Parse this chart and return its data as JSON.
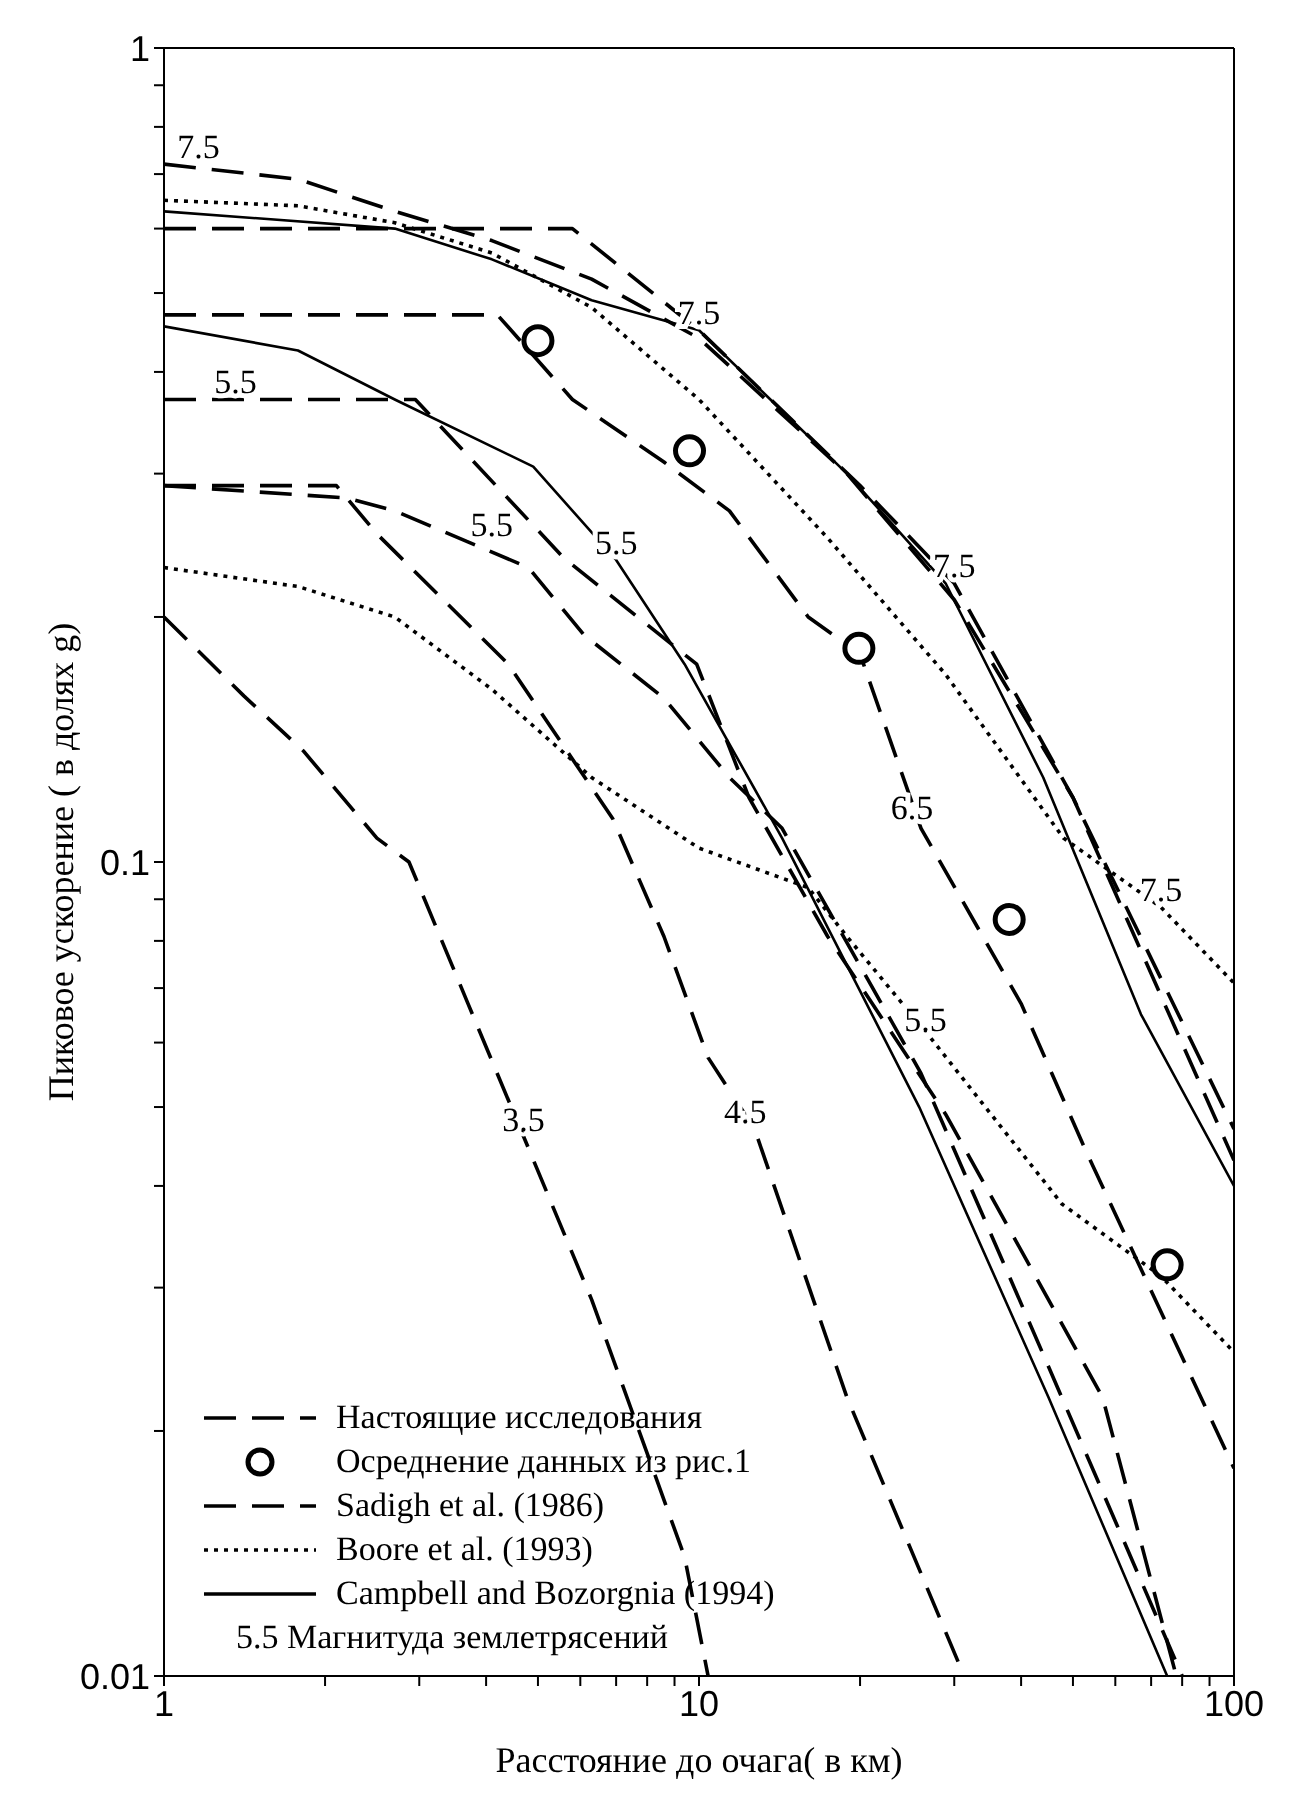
{
  "chart_data": {
    "type": "line",
    "xlabel": "Расстояние до очага( в км)",
    "ylabel": "Пиковое ускорение ( в долях g)",
    "log": "xy",
    "grid": false,
    "legend": "bottom left",
    "xlim": [
      1,
      100
    ],
    "xticks": [
      1,
      {
        "value": 2,
        "label": null
      },
      {
        "value": 3,
        "label": null
      },
      {
        "value": 4,
        "label": null
      },
      {
        "value": 5,
        "label": null
      },
      {
        "value": 6,
        "label": null
      },
      {
        "value": 7,
        "label": null
      },
      {
        "value": 8,
        "label": null
      },
      {
        "value": 9,
        "label": null
      },
      10,
      {
        "value": 20,
        "label": null
      },
      {
        "value": 30,
        "label": null
      },
      {
        "value": 40,
        "label": null
      },
      {
        "value": 50,
        "label": null
      },
      {
        "value": 60,
        "label": null
      },
      {
        "value": 70,
        "label": null
      },
      {
        "value": 80,
        "label": null
      },
      {
        "value": 90,
        "label": null
      },
      100
    ],
    "ylim": [
      0.01,
      1
    ],
    "yticks": [
      0.01,
      {
        "value": 0.02,
        "label": null
      },
      {
        "value": 0.03,
        "label": null
      },
      {
        "value": 0.04,
        "label": null
      },
      {
        "value": 0.05,
        "label": null
      },
      {
        "value": 0.06,
        "label": null
      },
      {
        "value": 0.07,
        "label": null
      },
      {
        "value": 0.08,
        "label": null
      },
      {
        "value": 0.09,
        "label": null
      },
      0.1,
      {
        "value": 0.2,
        "label": null
      },
      {
        "value": 0.3,
        "label": null
      },
      {
        "value": 0.4,
        "label": null
      },
      {
        "value": 0.5,
        "label": null
      },
      {
        "value": 0.6,
        "label": null
      },
      {
        "value": 0.7,
        "label": null
      },
      {
        "value": 0.8,
        "label": null
      },
      {
        "value": 0.9,
        "label": null
      },
      1
    ],
    "series": [
      {
        "name": "Настоящие исследования",
        "color": "#000000",
        "line_style": "dashed",
        "marker": "none",
        "x": [
          1,
          5.8,
          10,
          20,
          30,
          50,
          100
        ],
        "values": [
          0.6,
          0.6,
          0.45,
          0.29,
          0.22,
          0.12,
          0.047
        ]
      },
      {
        "color": "#000000",
        "line_style": "dashed",
        "marker": "none",
        "x": [
          1,
          4.2,
          5.8,
          8.6,
          11.4,
          16,
          20,
          26,
          40,
          53,
          100
        ],
        "values": [
          0.47,
          0.47,
          0.37,
          0.31,
          0.27,
          0.2,
          0.18,
          0.11,
          0.067,
          0.044,
          0.018
        ]
      },
      {
        "color": "#000000",
        "line_style": "dashed",
        "marker": "none",
        "x": [
          1,
          2.95,
          5.6,
          9.9,
          12.4,
          17.4,
          28.9,
          56.8,
          78
        ],
        "values": [
          0.37,
          0.37,
          0.236,
          0.175,
          0.12,
          0.081,
          0.049,
          0.022,
          0.01
        ]
      },
      {
        "color": "#000000",
        "line_style": "dashed",
        "marker": "none",
        "x": [
          1,
          2.1,
          2.5,
          4.4,
          6.9,
          8.6,
          10.4,
          12.7,
          18.9,
          31.3
        ],
        "values": [
          0.29,
          0.29,
          0.253,
          0.175,
          0.113,
          0.081,
          0.0575,
          0.047,
          0.022,
          0.01
        ]
      },
      {
        "color": "#000000",
        "line_style": "dashed",
        "marker": "none",
        "x": [
          1,
          1.41,
          1.82,
          2.5,
          2.87,
          3.7,
          4.7,
          6.3,
          9.4,
          10.4
        ],
        "values": [
          0.2,
          0.16,
          0.137,
          0.107,
          0.1,
          0.067,
          0.046,
          0.029,
          0.014,
          0.01
        ]
      },
      {
        "name": "Осреднение данных из рис.1",
        "type": "scatter",
        "color": "#000000",
        "marker": "circle",
        "x": [
          5,
          9.6,
          19.9,
          38,
          75
        ],
        "values": [
          0.437,
          0.32,
          0.183,
          0.085,
          0.032
        ]
      },
      {
        "name": "Sadigh et al. (1986)",
        "color": "#000000",
        "line_style": "dashed",
        "marker": "none",
        "x": [
          1,
          1.78,
          2.7,
          4.1,
          6.3,
          10,
          18.9,
          30,
          50,
          100
        ],
        "values": [
          0.72,
          0.69,
          0.63,
          0.58,
          0.52,
          0.44,
          0.3,
          0.21,
          0.12,
          0.043
        ]
      },
      {
        "color": "#000000",
        "line_style": "dashed",
        "marker": "none",
        "x": [
          1,
          2.2,
          2.7,
          4.8,
          6.1,
          8.6,
          11.4,
          14.3,
          26,
          45,
          80
        ],
        "values": [
          0.29,
          0.28,
          0.27,
          0.23,
          0.19,
          0.159,
          0.127,
          0.11,
          0.055,
          0.024,
          0.01
        ]
      },
      {
        "name": "Boore et al. (1993)",
        "color": "#000000",
        "line_style": "dotted",
        "marker": "none",
        "x": [
          1,
          1.78,
          2.7,
          4.1,
          6.3,
          10,
          17.4,
          28.9,
          48,
          73,
          100
        ],
        "values": [
          0.65,
          0.64,
          0.61,
          0.56,
          0.48,
          0.37,
          0.25,
          0.17,
          0.107,
          0.088,
          0.071
        ]
      },
      {
        "color": "#000000",
        "line_style": "dotted",
        "marker": "none",
        "x": [
          1,
          1.78,
          2.7,
          4.1,
          6.3,
          10,
          16,
          18.9,
          27,
          47.7,
          73,
          100
        ],
        "values": [
          0.23,
          0.218,
          0.2,
          0.163,
          0.127,
          0.104,
          0.093,
          0.081,
          0.061,
          0.038,
          0.031,
          0.025
        ]
      },
      {
        "name": "Campbell and Bozorgnia (1994)",
        "color": "#000000",
        "line_style": "solid",
        "marker": "none",
        "x": [
          1,
          2.7,
          4.1,
          6.3,
          10,
          18.9,
          28.9,
          44,
          67,
          100
        ],
        "values": [
          0.63,
          0.6,
          0.55,
          0.49,
          0.45,
          0.3,
          0.22,
          0.127,
          0.065,
          0.04
        ]
      },
      {
        "color": "#000000",
        "line_style": "solid",
        "marker": "none",
        "x": [
          1,
          1.78,
          2.7,
          4.9,
          7,
          9.4,
          14.3,
          25.8,
          45,
          75
        ],
        "values": [
          0.455,
          0.425,
          0.37,
          0.306,
          0.235,
          0.175,
          0.107,
          0.05,
          0.022,
          0.01
        ]
      }
    ],
    "annotations": [
      {
        "text": "7.5",
        "x": 1.16,
        "y": 0.72
      },
      {
        "text": "7.5",
        "x": 10,
        "y": 0.45
      },
      {
        "text": "7.5",
        "x": 30,
        "y": 0.22
      },
      {
        "text": "7.5",
        "x": 73,
        "y": 0.088
      },
      {
        "text": "5.5",
        "x": 1.36,
        "y": 0.37
      },
      {
        "text": "5.5",
        "x": 4.1,
        "y": 0.247
      },
      {
        "text": "5.5",
        "x": 7,
        "y": 0.235
      },
      {
        "text": "6.5",
        "x": 25,
        "y": 0.111
      },
      {
        "text": "5.5",
        "x": 26.5,
        "y": 0.061
      },
      {
        "text": "4.5",
        "x": 12.2,
        "y": 0.047
      },
      {
        "text": "3.5",
        "x": 4.7,
        "y": 0.046
      },
      "5.5 Магнитуда землетрясений"
    ]
  }
}
